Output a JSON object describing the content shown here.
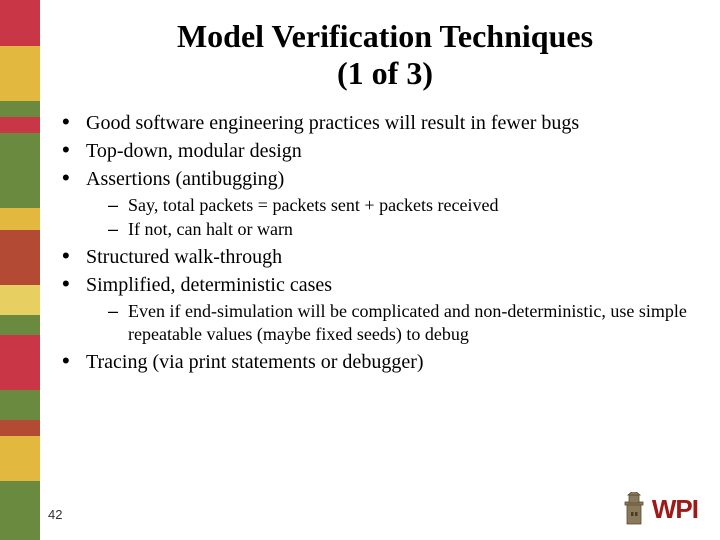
{
  "title_line1": "Model Verification Techniques",
  "title_line2": "(1 of 3)",
  "bullets": [
    {
      "text": "Good software engineering practices will result in fewer bugs",
      "sub": []
    },
    {
      "text": "Top-down, modular design",
      "sub": []
    },
    {
      "text": "Assertions (antibugging)",
      "sub": [
        "Say, total packets = packets sent + packets received",
        "If not, can halt or warn"
      ]
    },
    {
      "text": "Structured walk-through",
      "sub": []
    },
    {
      "text": "Simplified, deterministic cases",
      "sub": [
        "Even if end-simulation will be complicated and non-deterministic, use simple repeatable values (maybe fixed seeds) to debug"
      ]
    },
    {
      "text": "Tracing (via print statements or debugger)",
      "sub": []
    }
  ],
  "slide_number": "42",
  "logo_text": "WPI",
  "stripes": [
    {
      "color": "#c93646",
      "h": 46
    },
    {
      "color": "#e2b93e",
      "h": 55
    },
    {
      "color": "#6a8a3f",
      "h": 16
    },
    {
      "color": "#c93646",
      "h": 16
    },
    {
      "color": "#6a8a3f",
      "h": 75
    },
    {
      "color": "#e2b93e",
      "h": 22
    },
    {
      "color": "#b24a34",
      "h": 55
    },
    {
      "color": "#e7d061",
      "h": 30
    },
    {
      "color": "#6a8a3f",
      "h": 20
    },
    {
      "color": "#c93646",
      "h": 55
    },
    {
      "color": "#6a8a3f",
      "h": 30
    },
    {
      "color": "#b24a34",
      "h": 16
    },
    {
      "color": "#e2b93e",
      "h": 45
    },
    {
      "color": "#6a8a3f",
      "h": 59
    }
  ],
  "colors": {
    "background": "#ffffff",
    "text": "#000000",
    "logo_red": "#a01818",
    "tower_fill": "#8a7a5c",
    "tower_stroke": "#5a4a32"
  },
  "fonts": {
    "body_family": "Comic Sans MS",
    "title_size_pt": 32,
    "body_size_pt": 20,
    "sub_size_pt": 18
  }
}
